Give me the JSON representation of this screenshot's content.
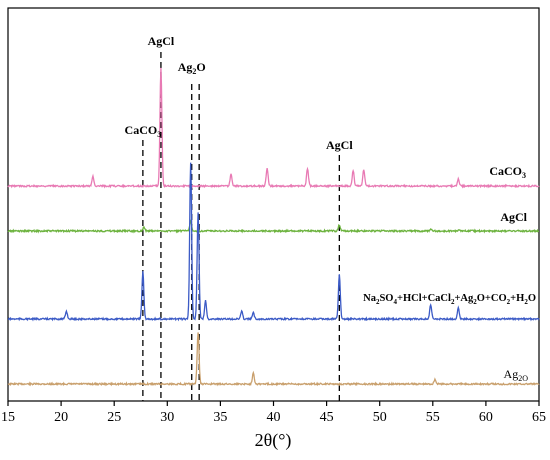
{
  "chart_data": {
    "type": "line",
    "title": "",
    "xlabel": "2θ(°)",
    "ylabel": "",
    "xlim": [
      15,
      65
    ],
    "xticks": [
      "15",
      "20",
      "25",
      "30",
      "35",
      "40",
      "45",
      "50",
      "55",
      "60",
      "65"
    ],
    "yticks": "none",
    "grid": false,
    "series": [
      {
        "name": "CaCO3",
        "label_parts": {
          "base": "CaCO",
          "sub": "3",
          "rest": ""
        },
        "color": "#e87ab4",
        "offset": 3,
        "x": [
          15,
          23.0,
          29.4,
          36.0,
          39.4,
          43.2,
          47.5,
          48.5,
          57.4,
          65
        ],
        "y": [
          0,
          8,
          100,
          10,
          15,
          15,
          13,
          14,
          6,
          0
        ]
      },
      {
        "name": "AgCl",
        "label_parts": {
          "base": "AgCl",
          "sub": "",
          "rest": ""
        },
        "color": "#6db33f",
        "offset": 2,
        "x": [
          15,
          27.8,
          32.2,
          46.2,
          54.8,
          57.5,
          65
        ],
        "y": [
          0,
          10,
          25,
          15,
          4,
          3,
          0
        ]
      },
      {
        "name": "Na2SO4+HCl+CaCl2+Ag2O+CO2+H2O",
        "label_parts": {
          "base": "Na",
          "sub": "2",
          "rest": "SO"
        },
        "label_full": [
          "Na",
          "2",
          "SO",
          "4",
          "+HCl+CaCl",
          "2",
          "+Ag",
          "2",
          "O+CO",
          "2",
          "+H",
          "2",
          "O"
        ],
        "color": "#3c5bc6",
        "offset": 1,
        "x": [
          15,
          20.5,
          27.7,
          32.2,
          32.9,
          33.6,
          37.0,
          38.1,
          46.2,
          54.8,
          57.4,
          65
        ],
        "y": [
          0,
          5,
          30,
          100,
          68,
          12,
          5,
          4,
          28,
          9,
          7,
          0
        ]
      },
      {
        "name": "Ag2O",
        "label_parts": {
          "base": "Ag",
          "sub": "2O",
          "rest": ""
        },
        "color": "#c9a06d",
        "offset": 0,
        "x": [
          15,
          32.9,
          38.1,
          55.2,
          65
        ],
        "y": [
          0,
          100,
          22,
          9,
          0
        ]
      }
    ],
    "annotations": [
      {
        "text": "CaCO",
        "sub": "3",
        "x": 27.7
      },
      {
        "text": "AgCl",
        "sub": "",
        "x": 29.4
      },
      {
        "text": "Ag",
        "sub": "2",
        "rest": "O",
        "x": 32.3
      },
      {
        "text": "AgCl",
        "sub": "",
        "x": 46.2
      }
    ],
    "reference_line_x": [
      27.7,
      29.4,
      32.3,
      33.0,
      46.2
    ]
  }
}
